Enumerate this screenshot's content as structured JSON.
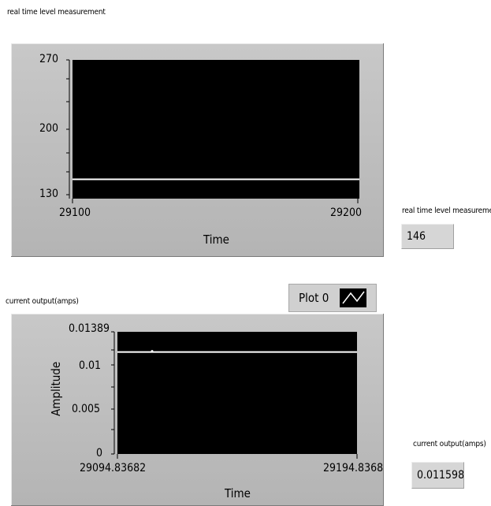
{
  "chart1": {
    "title": "real time level measurement",
    "xlabel": "Time",
    "y_ticks": [
      "270",
      "200",
      "130"
    ],
    "x_ticks": [
      "29100",
      "29200"
    ],
    "indicator_label": "real time level measureme",
    "indicator_value": "146"
  },
  "chart2": {
    "title": "current output(amps)",
    "xlabel": "Time",
    "ylabel": "Amplitude",
    "y_ticks": [
      "0.01389",
      "0.01",
      "0.005",
      "0"
    ],
    "x_ticks": [
      "29094.83682",
      "29194.8368"
    ],
    "legend_label": "Plot 0",
    "indicator_label": "current output(amps)",
    "indicator_value": "0.011598"
  },
  "chart_data": [
    {
      "type": "line",
      "title": "real time level measurement",
      "xlabel": "Time",
      "ylabel": "",
      "xlim": [
        29100,
        29200
      ],
      "ylim": [
        130,
        270
      ],
      "series": [
        {
          "x": [
            29100,
            29200
          ],
          "values": [
            146,
            146
          ],
          "color": "#ffffff"
        }
      ]
    },
    {
      "type": "line",
      "title": "current output(amps)",
      "xlabel": "Time",
      "ylabel": "Amplitude",
      "xlim": [
        29094.83682,
        29194.8368
      ],
      "ylim": [
        0,
        0.01389
      ],
      "series": [
        {
          "name": "Plot 0",
          "x": [
            29094.83682,
            29194.8368
          ],
          "values": [
            0.011598,
            0.011598
          ],
          "color": "#ffffff"
        }
      ]
    }
  ]
}
